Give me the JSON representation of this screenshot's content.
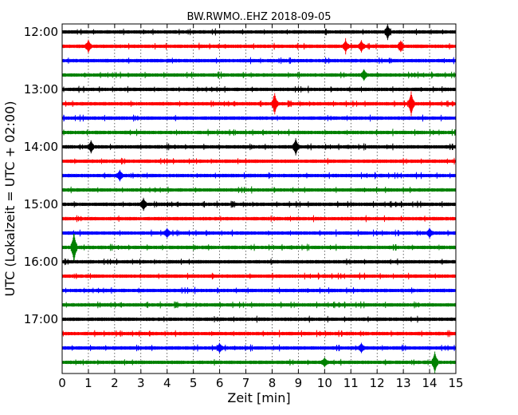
{
  "chart_data": {
    "type": "line",
    "title": "BW.RWMO..EHZ 2018-09-05",
    "xlabel": "Zeit  [min]",
    "ylabel": "UTC (Lokalzeit = UTC + 02:00)",
    "xlim": [
      0,
      15
    ],
    "x_ticks": [
      "0",
      "1",
      "2",
      "3",
      "4",
      "5",
      "6",
      "7",
      "8",
      "9",
      "10",
      "11",
      "12",
      "13",
      "14",
      "15"
    ],
    "y_ticks": [
      {
        "label": "12:00",
        "row": 0
      },
      {
        "label": "13:00",
        "row": 4
      },
      {
        "label": "14:00",
        "row": 8
      },
      {
        "label": "15:00",
        "row": 12
      },
      {
        "label": "16:00",
        "row": 16
      },
      {
        "label": "17:00",
        "row": 20
      }
    ],
    "interval_minutes": 15,
    "grid": "vertical dotted at each minute",
    "trace_colors": [
      "#000000",
      "#ff0000",
      "#0000ff",
      "#008000"
    ],
    "traces": [
      {
        "start": "12:00",
        "events": [
          {
            "t": 12.4,
            "amp": 1.8
          }
        ]
      },
      {
        "start": "12:15",
        "events": [
          {
            "t": 1.0,
            "amp": 1.4
          },
          {
            "t": 10.8,
            "amp": 1.3
          },
          {
            "t": 11.4,
            "amp": 1.3
          },
          {
            "t": 12.9,
            "amp": 1.2
          }
        ]
      },
      {
        "start": "12:30",
        "events": []
      },
      {
        "start": "12:45",
        "events": [
          {
            "t": 11.5,
            "amp": 1.2
          }
        ]
      },
      {
        "start": "13:00",
        "events": []
      },
      {
        "start": "13:15",
        "events": [
          {
            "t": 8.1,
            "amp": 2.5
          },
          {
            "t": 13.3,
            "amp": 3.0
          }
        ]
      },
      {
        "start": "13:30",
        "events": []
      },
      {
        "start": "13:45",
        "events": []
      },
      {
        "start": "14:00",
        "events": [
          {
            "t": 1.1,
            "amp": 1.4
          },
          {
            "t": 8.9,
            "amp": 2.0
          }
        ]
      },
      {
        "start": "14:15",
        "events": []
      },
      {
        "start": "14:30",
        "events": [
          {
            "t": 2.2,
            "amp": 1.2
          }
        ]
      },
      {
        "start": "14:45",
        "events": []
      },
      {
        "start": "15:00",
        "events": [
          {
            "t": 3.1,
            "amp": 1.4
          }
        ]
      },
      {
        "start": "15:15",
        "events": []
      },
      {
        "start": "15:30",
        "events": [
          {
            "t": 4.0,
            "amp": 1.0
          },
          {
            "t": 14.0,
            "amp": 1.0
          }
        ]
      },
      {
        "start": "15:45",
        "events": [
          {
            "t": 0.45,
            "amp": 4.0
          }
        ]
      },
      {
        "start": "16:00",
        "events": []
      },
      {
        "start": "16:15",
        "events": []
      },
      {
        "start": "16:30",
        "events": []
      },
      {
        "start": "16:45",
        "events": []
      },
      {
        "start": "17:00",
        "events": []
      },
      {
        "start": "17:15",
        "events": []
      },
      {
        "start": "17:30",
        "events": [
          {
            "t": 6.0,
            "amp": 1.0
          },
          {
            "t": 11.4,
            "amp": 1.0
          }
        ]
      },
      {
        "start": "17:45",
        "events": [
          {
            "t": 10.0,
            "amp": 1.0
          },
          {
            "t": 14.2,
            "amp": 2.6
          }
        ]
      }
    ]
  }
}
